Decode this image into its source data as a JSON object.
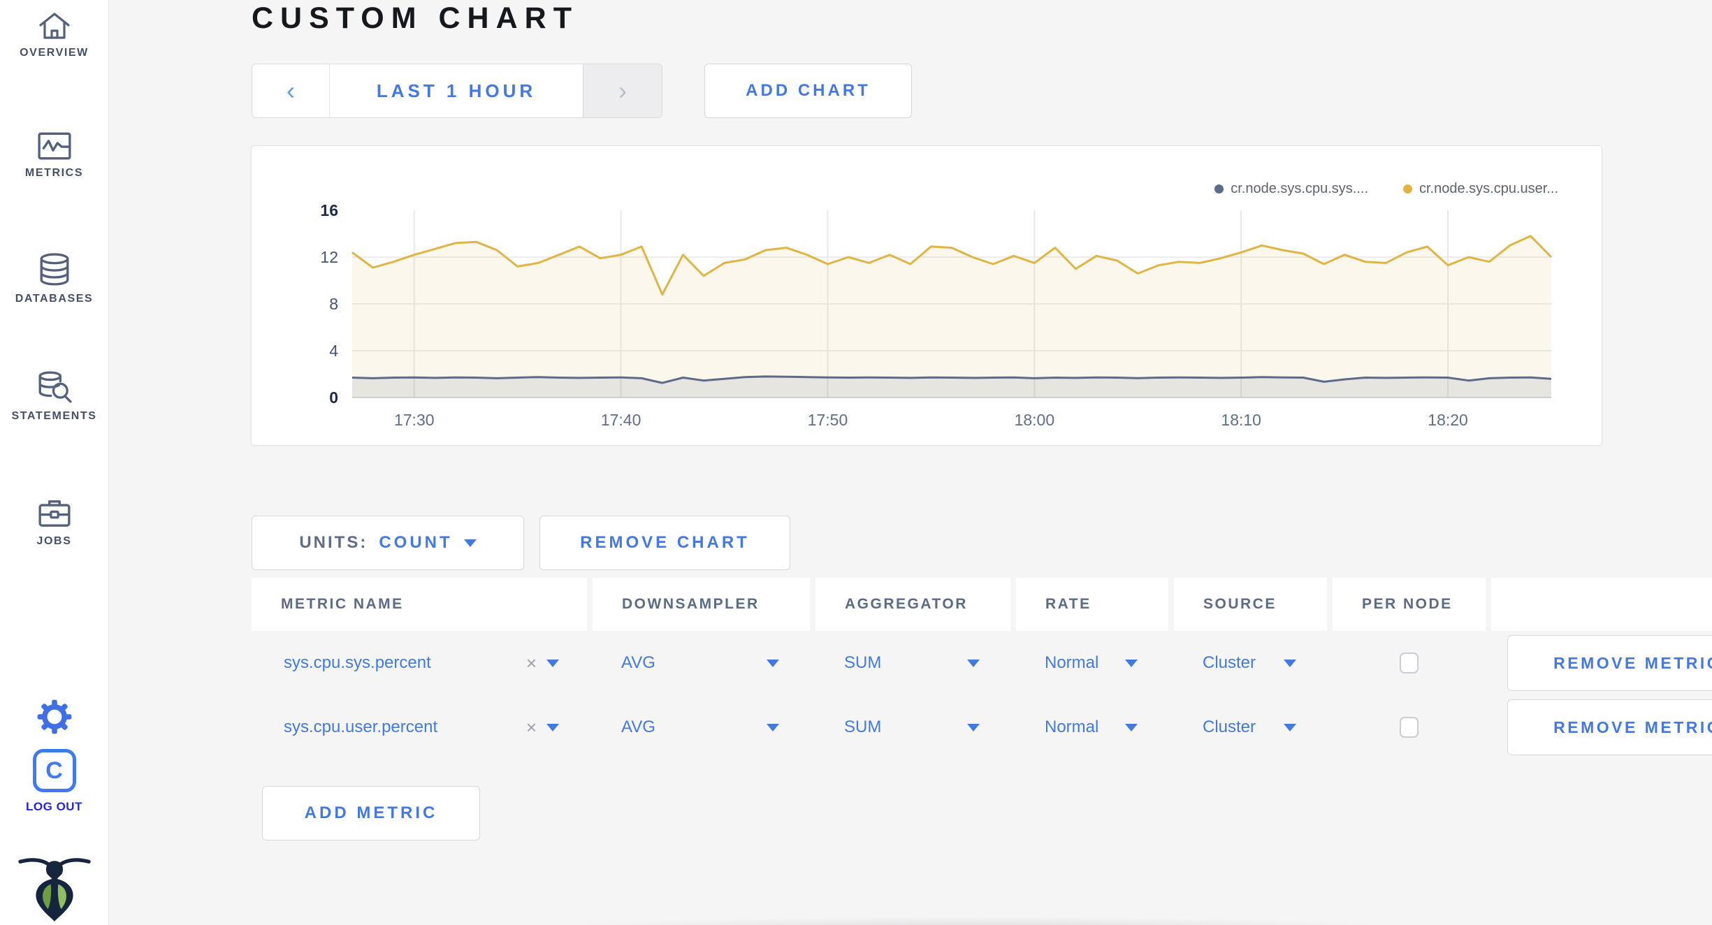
{
  "header": {
    "title": "CUSTOM CHART"
  },
  "sidebar": {
    "items": [
      {
        "icon": "home-icon",
        "label": "OVERVIEW"
      },
      {
        "icon": "metrics-graph-icon",
        "label": "METRICS"
      },
      {
        "icon": "database-icon",
        "label": "DATABASES"
      },
      {
        "icon": "statements-search-icon",
        "label": "STATEMENTS"
      },
      {
        "icon": "briefcase-icon",
        "label": "JOBS"
      }
    ],
    "settings_icon": "gear-icon",
    "logout": {
      "icon_letter": "C",
      "label": "LOG OUT"
    },
    "logo_icon": "cockroach-bug-logo"
  },
  "toolbar": {
    "prev_arrow": "‹",
    "time_range_label": "LAST 1 HOUR",
    "next_arrow": "›",
    "add_chart_label": "ADD CHART"
  },
  "units_bar": {
    "units_label": "UNITS:",
    "units_value": "COUNT",
    "remove_chart_label": "REMOVE CHART"
  },
  "table": {
    "headers": [
      "METRIC NAME",
      "DOWNSAMPLER",
      "AGGREGATOR",
      "RATE",
      "SOURCE",
      "PER NODE",
      ""
    ],
    "rows": [
      {
        "metric": "sys.cpu.sys.percent",
        "clear": "×",
        "downsampler": "AVG",
        "aggregator": "SUM",
        "rate": "Normal",
        "source": "Cluster",
        "per_node": false,
        "action": "REMOVE METRIC"
      },
      {
        "metric": "sys.cpu.user.percent",
        "clear": "×",
        "downsampler": "AVG",
        "aggregator": "SUM",
        "rate": "Normal",
        "source": "Cluster",
        "per_node": false,
        "action": "REMOVE METRIC"
      }
    ]
  },
  "add_metric_label": "ADD METRIC",
  "colors": {
    "accent_blue": "#4479e2",
    "logout_blue": "#2126e8",
    "series_sys": "#5b6b88",
    "series_user": "#e0b545",
    "page_background": "#f5f5f6"
  },
  "chart_data": {
    "type": "line",
    "title": "",
    "xlabel": "",
    "ylabel": "",
    "x_start": "17:27",
    "x_interval_minutes": 1,
    "x_ticks": [
      "17:30",
      "17:40",
      "17:50",
      "18:00",
      "18:10",
      "18:20"
    ],
    "y_ticks": [
      0,
      4,
      8,
      12,
      16
    ],
    "ylim": [
      0,
      16
    ],
    "grid": true,
    "legend_position": "top-right",
    "series": [
      {
        "name": "cr.node.sys.cpu.sys....",
        "color": "#5b6b88",
        "fill": "rgba(91,107,136,0.13)",
        "values": [
          1.7,
          1.65,
          1.7,
          1.72,
          1.68,
          1.72,
          1.7,
          1.65,
          1.7,
          1.75,
          1.7,
          1.68,
          1.7,
          1.72,
          1.65,
          1.25,
          1.7,
          1.45,
          1.6,
          1.75,
          1.8,
          1.78,
          1.75,
          1.72,
          1.7,
          1.72,
          1.7,
          1.68,
          1.72,
          1.7,
          1.68,
          1.7,
          1.72,
          1.65,
          1.7,
          1.68,
          1.72,
          1.7,
          1.66,
          1.7,
          1.72,
          1.7,
          1.68,
          1.7,
          1.75,
          1.72,
          1.7,
          1.35,
          1.55,
          1.7,
          1.68,
          1.7,
          1.72,
          1.7,
          1.45,
          1.65,
          1.7,
          1.72,
          1.6
        ]
      },
      {
        "name": "cr.node.sys.cpu.user...",
        "color": "#e0b545",
        "fill": "rgba(224,181,69,0.10)",
        "values": [
          12.4,
          11.1,
          11.6,
          12.2,
          12.7,
          13.2,
          13.3,
          12.6,
          11.2,
          11.5,
          12.2,
          12.9,
          11.9,
          12.2,
          12.9,
          8.8,
          12.2,
          10.4,
          11.5,
          11.8,
          12.6,
          12.8,
          12.2,
          11.4,
          12.0,
          11.5,
          12.2,
          11.4,
          12.9,
          12.8,
          12.0,
          11.4,
          12.1,
          11.5,
          12.8,
          11.0,
          12.1,
          11.7,
          10.6,
          11.3,
          11.6,
          11.5,
          11.9,
          12.4,
          13.0,
          12.6,
          12.3,
          11.4,
          12.2,
          11.6,
          11.5,
          12.4,
          12.9,
          11.3,
          12.0,
          11.6,
          13.0,
          13.8,
          12.0
        ]
      }
    ]
  }
}
